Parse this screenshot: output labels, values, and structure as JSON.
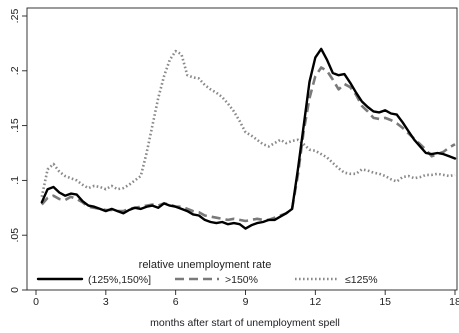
{
  "chart_data": {
    "type": "line",
    "title": "",
    "xlabel": "months after start of unemployment spell",
    "ylabel": "",
    "xlim": [
      0,
      18
    ],
    "ylim": [
      0,
      0.25
    ],
    "x_ticks": [
      0,
      3,
      6,
      9,
      12,
      15,
      18
    ],
    "y_ticks": [
      0,
      0.05,
      0.1,
      0.15,
      0.2,
      0.25
    ],
    "x_tick_labels": [
      "0",
      "3",
      "6",
      "9",
      "12",
      "15",
      "18"
    ],
    "y_tick_labels": [
      "0",
      ".05",
      ".1",
      ".15",
      ".2",
      ".25"
    ],
    "grid": false,
    "legend": {
      "title": "relative unemployment rate",
      "position": "bottom-left"
    },
    "series": [
      {
        "name": "(125%,150%]",
        "style": "solid",
        "color": "#000000",
        "x": [
          0.25,
          0.5,
          0.75,
          1,
          1.25,
          1.5,
          1.75,
          2,
          2.25,
          2.5,
          2.75,
          3,
          3.25,
          3.5,
          3.75,
          4,
          4.25,
          4.5,
          4.75,
          5,
          5.25,
          5.5,
          5.75,
          6,
          6.25,
          6.5,
          6.75,
          7,
          7.25,
          7.5,
          7.75,
          8,
          8.25,
          8.5,
          8.75,
          9,
          9.25,
          9.5,
          9.75,
          10,
          10.25,
          10.5,
          10.75,
          11,
          11.25,
          11.5,
          11.75,
          12,
          12.25,
          12.5,
          12.75,
          13,
          13.25,
          13.5,
          13.75,
          14,
          14.25,
          14.5,
          14.75,
          15,
          15.25,
          15.5,
          15.75,
          16,
          16.25,
          16.5,
          16.75,
          17,
          17.25,
          17.5,
          17.75,
          18
        ],
        "values": [
          0.08,
          0.092,
          0.094,
          0.089,
          0.086,
          0.088,
          0.087,
          0.081,
          0.077,
          0.076,
          0.074,
          0.072,
          0.074,
          0.072,
          0.07,
          0.073,
          0.075,
          0.074,
          0.076,
          0.077,
          0.075,
          0.079,
          0.077,
          0.076,
          0.074,
          0.072,
          0.069,
          0.068,
          0.064,
          0.062,
          0.061,
          0.062,
          0.06,
          0.061,
          0.06,
          0.056,
          0.059,
          0.061,
          0.062,
          0.064,
          0.064,
          0.067,
          0.07,
          0.074,
          0.11,
          0.15,
          0.19,
          0.212,
          0.22,
          0.21,
          0.198,
          0.196,
          0.197,
          0.189,
          0.18,
          0.172,
          0.167,
          0.163,
          0.162,
          0.164,
          0.161,
          0.16,
          0.153,
          0.145,
          0.137,
          0.131,
          0.125,
          0.124,
          0.125,
          0.124,
          0.122,
          0.12
        ]
      },
      {
        "name": ">150%",
        "style": "dashed",
        "color": "#7a7a7a",
        "x": [
          0.25,
          0.5,
          0.75,
          1,
          1.25,
          1.5,
          1.75,
          2,
          2.25,
          2.5,
          2.75,
          3,
          3.25,
          3.5,
          3.75,
          4,
          4.25,
          4.5,
          4.75,
          5,
          5.25,
          5.5,
          5.75,
          6,
          6.25,
          6.5,
          6.75,
          7,
          7.25,
          7.5,
          7.75,
          8,
          8.25,
          8.5,
          8.75,
          9,
          9.25,
          9.5,
          9.75,
          10,
          10.25,
          10.5,
          10.75,
          11,
          11.25,
          11.5,
          11.75,
          12,
          12.25,
          12.5,
          12.75,
          13,
          13.25,
          13.5,
          13.75,
          14,
          14.25,
          14.5,
          14.75,
          15,
          15.25,
          15.5,
          15.75,
          16,
          16.25,
          16.5,
          16.75,
          17,
          17.25,
          17.5,
          17.75,
          18
        ],
        "values": [
          0.078,
          0.084,
          0.086,
          0.083,
          0.082,
          0.085,
          0.083,
          0.08,
          0.076,
          0.075,
          0.074,
          0.073,
          0.073,
          0.072,
          0.072,
          0.074,
          0.075,
          0.076,
          0.077,
          0.078,
          0.077,
          0.079,
          0.078,
          0.076,
          0.076,
          0.074,
          0.072,
          0.071,
          0.068,
          0.067,
          0.066,
          0.065,
          0.064,
          0.065,
          0.064,
          0.063,
          0.064,
          0.065,
          0.064,
          0.064,
          0.066,
          0.068,
          0.07,
          0.074,
          0.105,
          0.145,
          0.175,
          0.195,
          0.203,
          0.2,
          0.192,
          0.183,
          0.188,
          0.185,
          0.178,
          0.168,
          0.163,
          0.157,
          0.156,
          0.157,
          0.155,
          0.152,
          0.148,
          0.143,
          0.138,
          0.133,
          0.128,
          0.122,
          0.124,
          0.126,
          0.13,
          0.133
        ]
      },
      {
        "name": "≤125%",
        "style": "dotted",
        "color": "#8a8a8a",
        "x": [
          0.25,
          0.5,
          0.75,
          1,
          1.25,
          1.5,
          1.75,
          2,
          2.25,
          2.5,
          2.75,
          3,
          3.25,
          3.5,
          3.75,
          4,
          4.25,
          4.5,
          4.75,
          5,
          5.25,
          5.5,
          5.75,
          6,
          6.25,
          6.5,
          6.75,
          7,
          7.25,
          7.5,
          7.75,
          8,
          8.25,
          8.5,
          8.75,
          9,
          9.25,
          9.5,
          9.75,
          10,
          10.25,
          10.5,
          10.75,
          11,
          11.25,
          11.5,
          11.75,
          12,
          12.25,
          12.5,
          12.75,
          13,
          13.25,
          13.5,
          13.75,
          14,
          14.25,
          14.5,
          14.75,
          15,
          15.25,
          15.5,
          15.75,
          16,
          16.25,
          16.5,
          16.75,
          17,
          17.25,
          17.5,
          17.75,
          18
        ],
        "values": [
          0.085,
          0.11,
          0.115,
          0.108,
          0.104,
          0.102,
          0.1,
          0.096,
          0.093,
          0.095,
          0.094,
          0.092,
          0.095,
          0.092,
          0.093,
          0.096,
          0.1,
          0.104,
          0.125,
          0.15,
          0.175,
          0.195,
          0.21,
          0.218,
          0.215,
          0.196,
          0.194,
          0.193,
          0.187,
          0.183,
          0.18,
          0.176,
          0.17,
          0.163,
          0.154,
          0.144,
          0.141,
          0.137,
          0.133,
          0.131,
          0.134,
          0.137,
          0.134,
          0.136,
          0.137,
          0.133,
          0.128,
          0.127,
          0.124,
          0.121,
          0.116,
          0.111,
          0.107,
          0.106,
          0.106,
          0.11,
          0.109,
          0.107,
          0.106,
          0.104,
          0.101,
          0.099,
          0.103,
          0.104,
          0.102,
          0.103,
          0.105,
          0.105,
          0.106,
          0.105,
          0.104,
          0.105
        ]
      }
    ]
  }
}
